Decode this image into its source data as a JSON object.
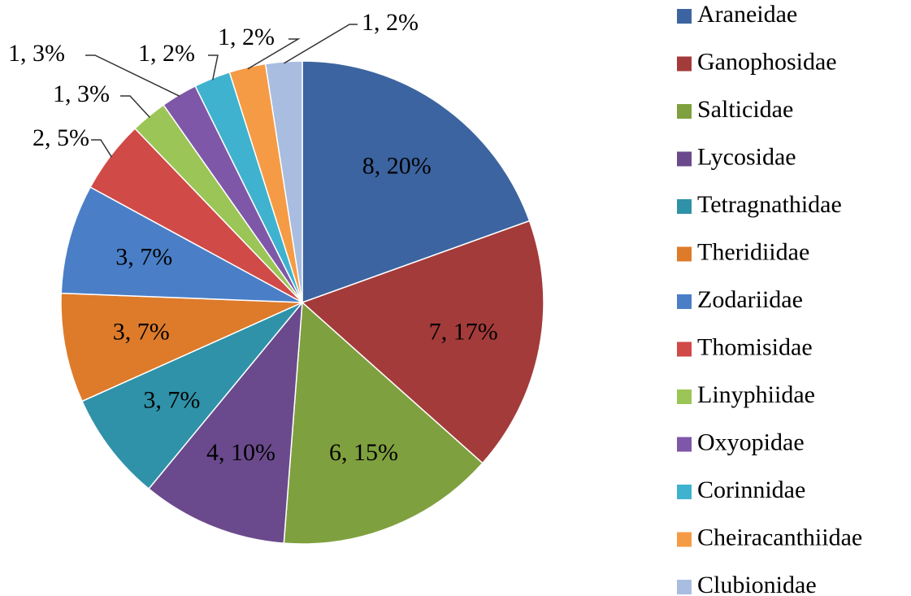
{
  "chart_data": {
    "type": "pie",
    "categories": [
      "Araneidae",
      "Ganophosidae",
      "Salticidae",
      "Lycosidae",
      "Tetragnathidae",
      "Theridiidae",
      "Zodariidae",
      "Thomisidae",
      "Linyphiidae",
      "Oxyopidae",
      "Corinnidae",
      "Cheiracanthiidae",
      "Clubionidae"
    ],
    "values": [
      8,
      7,
      6,
      4,
      3,
      3,
      3,
      2,
      1,
      1,
      1,
      1,
      1
    ],
    "value_labels": [
      "8, 20%",
      "7, 17%",
      "6, 15%",
      "4, 10%",
      "3, 7%",
      "3, 7%",
      "3, 7%",
      "2, 5%",
      "1, 3%",
      "1, 3%",
      "1, 2%",
      "1, 2%",
      "1, 2%"
    ],
    "colors": [
      "#3c64a0",
      "#a33b3a",
      "#7fa03e",
      "#6a4a8c",
      "#2f92a8",
      "#dd7b2b",
      "#4a7fc7",
      "#d04a48",
      "#9bc556",
      "#7f57a8",
      "#3fb2cf",
      "#f59b45",
      "#a8bde0"
    ],
    "legend": "right"
  }
}
